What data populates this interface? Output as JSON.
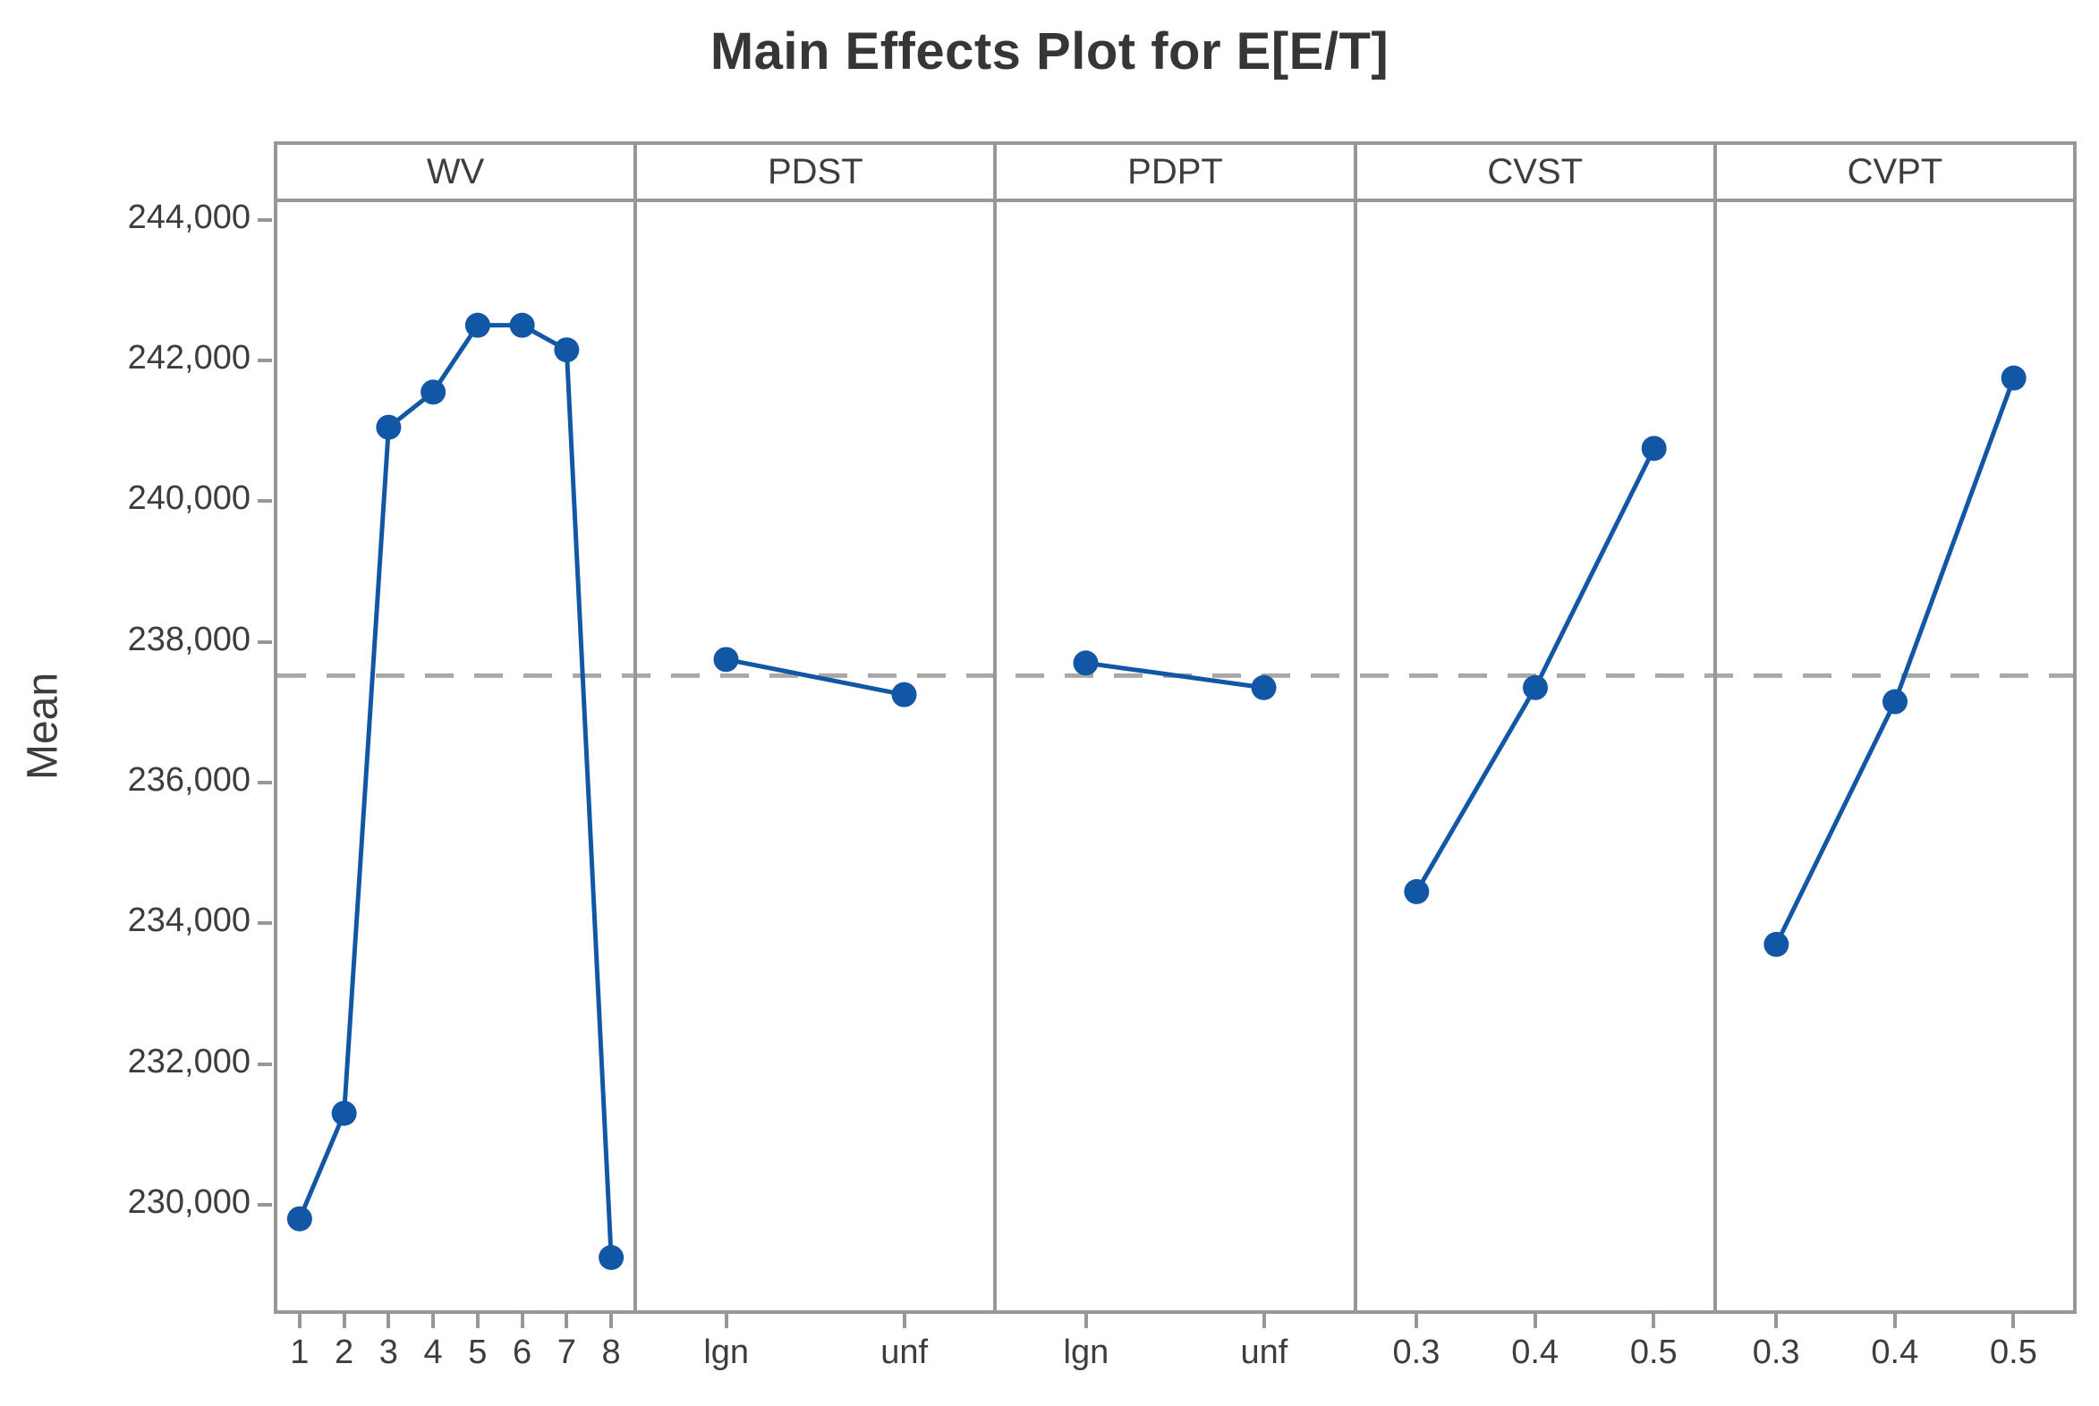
{
  "title": "Main Effects Plot for E[E/T]",
  "y_axis_title": "Mean",
  "colors": {
    "series": "#1257A5",
    "reference_dash": "#A8A8A8",
    "frame": "#979797",
    "text": "#3D3D3D",
    "title_text": "#363636"
  },
  "chart_data": {
    "type": "line",
    "title": "Main Effects Plot for E[E/T]",
    "subtitle": "",
    "xlabel": "",
    "ylabel": "Mean",
    "legend": "none",
    "grid": false,
    "ylim": [
      228500,
      244250
    ],
    "yticks": [
      230000,
      232000,
      234000,
      236000,
      238000,
      240000,
      242000,
      244000
    ],
    "ytick_labels": [
      "230,000",
      "232,000",
      "234,000",
      "236,000",
      "238,000",
      "240,000",
      "242,000",
      "244,000"
    ],
    "reference_line_mean": 237520,
    "panels": [
      {
        "factor": "WV",
        "categories": [
          "1",
          "2",
          "3",
          "4",
          "5",
          "6",
          "7",
          "8"
        ],
        "values": [
          229800,
          231300,
          241050,
          241550,
          242500,
          242500,
          242150,
          229250
        ]
      },
      {
        "factor": "PDST",
        "categories": [
          "lgn",
          "unf"
        ],
        "values": [
          237750,
          237250
        ]
      },
      {
        "factor": "PDPT",
        "categories": [
          "lgn",
          "unf"
        ],
        "values": [
          237700,
          237350
        ]
      },
      {
        "factor": "CVST",
        "categories": [
          "0.3",
          "0.4",
          "0.5"
        ],
        "values": [
          234450,
          237350,
          240750
        ]
      },
      {
        "factor": "CVPT",
        "categories": [
          "0.3",
          "0.4",
          "0.5"
        ],
        "values": [
          233700,
          237150,
          241750
        ]
      }
    ]
  }
}
